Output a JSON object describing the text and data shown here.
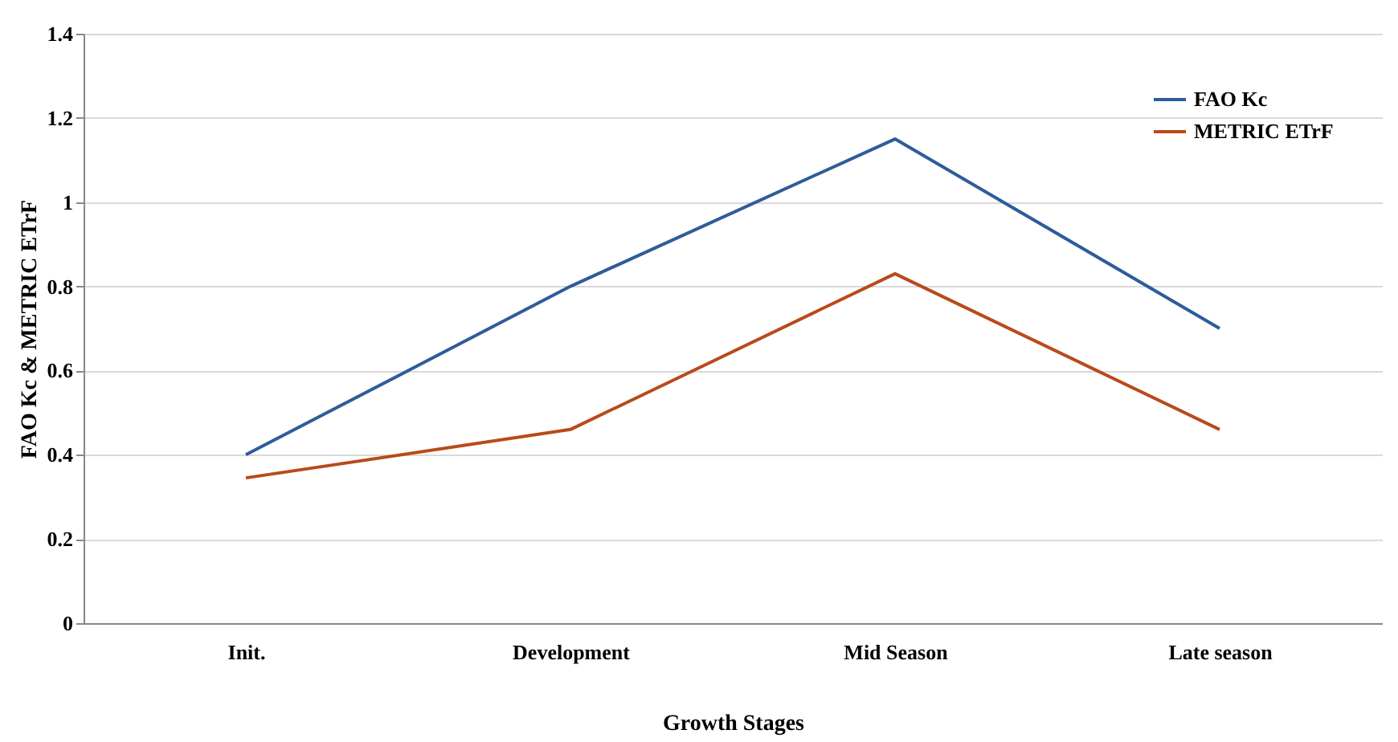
{
  "chart_data": {
    "type": "line",
    "xlabel": "Growth Stages",
    "ylabel": "FAO Kc & METRIC ETrF",
    "categories": [
      "Init.",
      "Development",
      "Mid Season",
      "Late season"
    ],
    "series": [
      {
        "name": "FAO Kc",
        "color": "#2e5c99",
        "values": [
          0.4,
          0.8,
          1.15,
          0.7
        ]
      },
      {
        "name": "METRIC ETrF",
        "color": "#b94a1a",
        "values": [
          0.345,
          0.46,
          0.83,
          0.46
        ]
      }
    ],
    "ylim": [
      0,
      1.4
    ],
    "yticks": [
      0,
      0.2,
      0.4,
      0.6,
      0.8,
      1,
      1.2,
      1.4
    ],
    "grid": "y",
    "legend": "top right",
    "marker": "none",
    "line_style": "solid"
  }
}
